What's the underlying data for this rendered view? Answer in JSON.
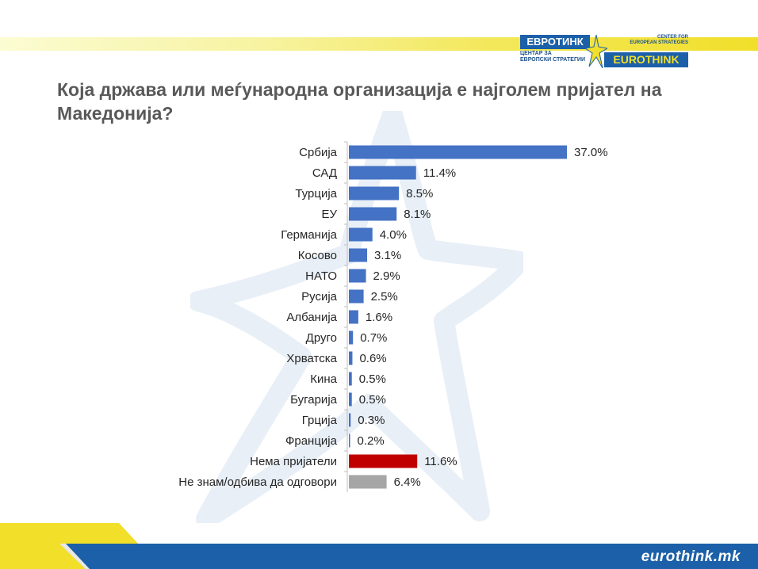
{
  "logo": {
    "mk_name": "ЕВРОТИНК",
    "mk_tagline_1": "ЦЕНТАР ЗА",
    "mk_tagline_2": "ЕВРОПСКИ СТРАТЕГИИ",
    "en_tagline_1": "CENTER FOR",
    "en_tagline_2": "EUROPEAN STRATEGIES",
    "en_name": "EUROTHINK"
  },
  "footer": {
    "url": "eurothink.mk"
  },
  "colors": {
    "primary_bar": "#4472c4",
    "no_friends_bar": "#c00000",
    "dont_know_bar": "#a6a6a6",
    "brand_blue": "#1b60a8",
    "brand_yellow": "#f1df2a"
  },
  "chart_data": {
    "type": "bar",
    "orientation": "horizontal",
    "title": "Која држава или меѓународна организација е најголем пријател на Македонија?",
    "categories": [
      "Србија",
      "САД",
      "Турција",
      "ЕУ",
      "Германија",
      "Косово",
      "НАТО",
      "Русија",
      "Албанија",
      "Друго",
      "Хрватска",
      "Кина",
      "Бугарија",
      "Грција",
      "Франција",
      "Нема пријатели",
      "Не знам/одбива да одговори"
    ],
    "values": [
      37.0,
      11.4,
      8.5,
      8.1,
      4.0,
      3.1,
      2.9,
      2.5,
      1.6,
      0.7,
      0.6,
      0.5,
      0.5,
      0.3,
      0.2,
      11.6,
      6.4
    ],
    "value_labels": [
      "37.0%",
      "11.4%",
      "8.5%",
      "8.1%",
      "4.0%",
      "3.1%",
      "2.9%",
      "2.5%",
      "1.6%",
      "0.7%",
      "0.6%",
      "0.5%",
      "0.5%",
      "0.3%",
      "0.2%",
      "11.6%",
      "6.4%"
    ],
    "bar_colors": [
      "#4472c4",
      "#4472c4",
      "#4472c4",
      "#4472c4",
      "#4472c4",
      "#4472c4",
      "#4472c4",
      "#4472c4",
      "#4472c4",
      "#4472c4",
      "#4472c4",
      "#4472c4",
      "#4472c4",
      "#4472c4",
      "#4472c4",
      "#c00000",
      "#a6a6a6"
    ],
    "xlim": [
      0,
      37.0
    ],
    "grid": false,
    "legend": "none"
  }
}
